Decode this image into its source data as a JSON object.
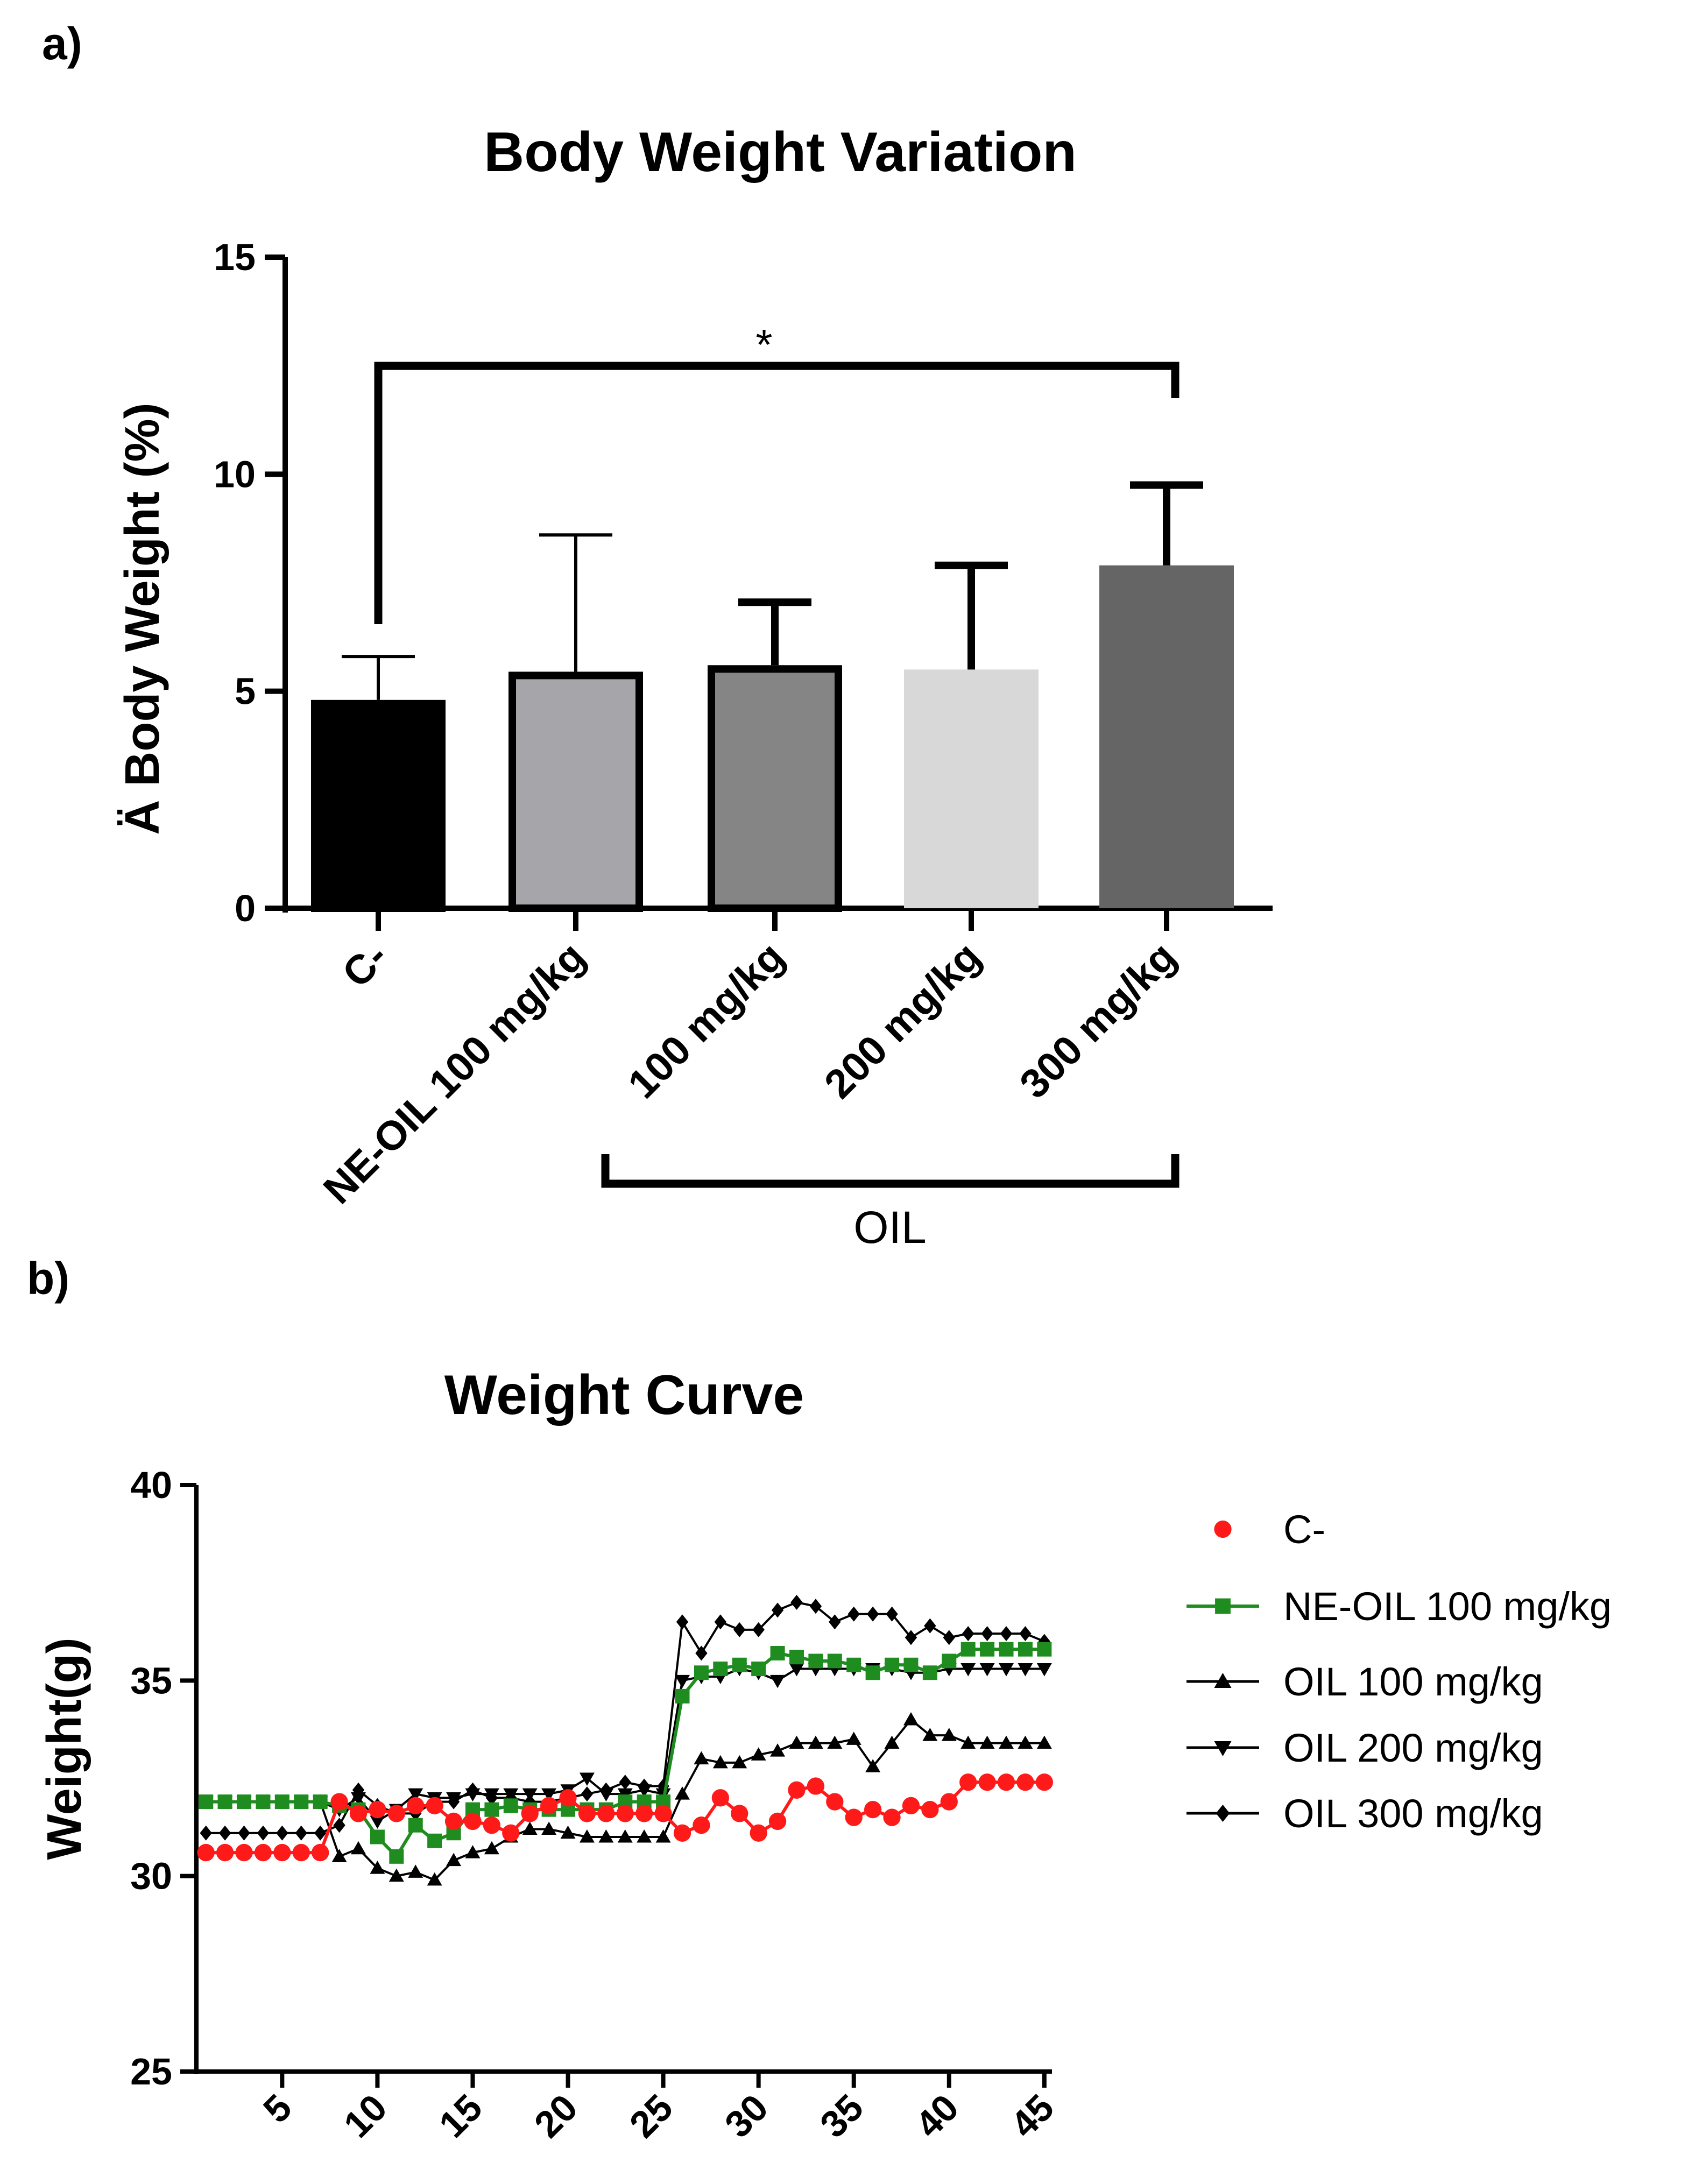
{
  "colors": {
    "ctrl_bar": "#000000",
    "ne_oil_bar": "#a6a6aa",
    "oil100_bar": "#858585",
    "oil200_bar": "#d8d8d8",
    "oil300_bar": "#656565",
    "ctrl_line": "#ff1a1a",
    "ne_oil_line": "#1e8c1e",
    "oil_lines": "#000000"
  },
  "chart_data": [
    {
      "panel_label": "a)",
      "type": "bar",
      "title": "Body Weight Variation",
      "xlabel": "",
      "ylabel": "Ä Body Weight (%)",
      "ylim": [
        0,
        15
      ],
      "yticks": [
        "0",
        "5",
        "10",
        "15"
      ],
      "categories": [
        "C-",
        "NE-OIL 100 mg/kg",
        "100 mg/kg",
        "200 mg/kg",
        "300 mg/kg"
      ],
      "values": [
        4.8,
        5.45,
        5.6,
        5.5,
        7.9
      ],
      "error": [
        1.0,
        3.15,
        1.45,
        2.4,
        1.85
      ],
      "group_label": "OIL",
      "significance": {
        "from": "C-",
        "to": "300 mg/kg",
        "label": "*"
      }
    },
    {
      "panel_label": "b)",
      "type": "line",
      "title": "Weight Curve",
      "xlabel": "",
      "ylabel": "Weight(g)",
      "xlim": [
        1,
        45
      ],
      "ylim": [
        25,
        40
      ],
      "xticks": [
        "5",
        "10",
        "15",
        "20",
        "25",
        "30",
        "35",
        "40",
        "45"
      ],
      "yticks": [
        "25",
        "30",
        "35",
        "40"
      ],
      "x": [
        1,
        2,
        3,
        4,
        5,
        6,
        7,
        8,
        9,
        10,
        11,
        12,
        13,
        14,
        15,
        16,
        17,
        18,
        19,
        20,
        21,
        22,
        23,
        24,
        25,
        26,
        27,
        28,
        29,
        30,
        31,
        32,
        33,
        34,
        35,
        36,
        37,
        38,
        39,
        40,
        41,
        42,
        43,
        44,
        45
      ],
      "series": [
        {
          "name": "C-",
          "marker": "circle",
          "values": [
            30.6,
            30.6,
            30.6,
            30.6,
            30.6,
            30.6,
            30.6,
            31.9,
            31.6,
            31.7,
            31.6,
            31.8,
            31.8,
            31.4,
            31.4,
            31.3,
            31.1,
            31.6,
            31.8,
            32.0,
            31.6,
            31.6,
            31.6,
            31.6,
            31.6,
            31.1,
            31.3,
            32.0,
            31.6,
            31.1,
            31.4,
            32.2,
            32.3,
            31.9,
            31.5,
            31.7,
            31.5,
            31.8,
            31.7,
            31.9,
            32.4,
            32.4,
            32.4,
            32.4,
            32.4
          ]
        },
        {
          "name": "NE-OIL 100 mg/kg",
          "marker": "square",
          "values": [
            31.9,
            31.9,
            31.9,
            31.9,
            31.9,
            31.9,
            31.9,
            31.8,
            31.7,
            31.0,
            30.5,
            31.3,
            30.9,
            31.1,
            31.7,
            31.7,
            31.8,
            31.7,
            31.7,
            31.7,
            31.7,
            31.7,
            31.9,
            31.9,
            31.9,
            34.6,
            35.2,
            35.3,
            35.4,
            35.3,
            35.7,
            35.6,
            35.5,
            35.5,
            35.4,
            35.2,
            35.4,
            35.4,
            35.2,
            35.5,
            35.8,
            35.8,
            35.8,
            35.8,
            35.8
          ]
        },
        {
          "name": "OIL 100 mg/kg",
          "marker": "triangle-up",
          "values": [
            31.9,
            31.9,
            31.9,
            31.9,
            31.9,
            31.9,
            31.9,
            30.5,
            30.7,
            30.2,
            30.0,
            30.1,
            29.9,
            30.4,
            30.6,
            30.7,
            31.0,
            31.2,
            31.2,
            31.1,
            31.0,
            31.0,
            31.0,
            31.0,
            31.0,
            32.1,
            33.0,
            32.9,
            32.9,
            33.1,
            33.2,
            33.4,
            33.4,
            33.4,
            33.5,
            32.8,
            33.4,
            34.0,
            33.6,
            33.6,
            33.4,
            33.4,
            33.4,
            33.4,
            33.4
          ]
        },
        {
          "name": "OIL 200 mg/kg",
          "marker": "triangle-down",
          "values": [
            31.9,
            31.9,
            31.9,
            31.9,
            31.9,
            31.9,
            31.9,
            31.7,
            32.0,
            31.4,
            31.7,
            32.1,
            32.0,
            32.0,
            32.1,
            32.1,
            32.1,
            32.1,
            32.1,
            32.2,
            32.5,
            32.1,
            32.1,
            32.2,
            32.1,
            35.0,
            35.1,
            35.1,
            35.3,
            35.2,
            35.0,
            35.3,
            35.3,
            35.3,
            35.3,
            35.3,
            35.3,
            35.2,
            35.2,
            35.3,
            35.3,
            35.3,
            35.3,
            35.3,
            35.3
          ]
        },
        {
          "name": "OIL 300 mg/kg",
          "marker": "diamond",
          "values": [
            31.1,
            31.1,
            31.1,
            31.1,
            31.1,
            31.1,
            31.1,
            31.3,
            32.2,
            31.8,
            31.6,
            31.6,
            31.9,
            31.9,
            32.2,
            32.0,
            32.0,
            31.9,
            31.9,
            32.0,
            32.1,
            32.2,
            32.4,
            32.3,
            32.3,
            36.5,
            35.7,
            36.5,
            36.3,
            36.3,
            36.8,
            37.0,
            36.9,
            36.5,
            36.7,
            36.7,
            36.7,
            36.1,
            36.4,
            36.1,
            36.2,
            36.2,
            36.2,
            36.2,
            36.0
          ]
        }
      ]
    }
  ]
}
